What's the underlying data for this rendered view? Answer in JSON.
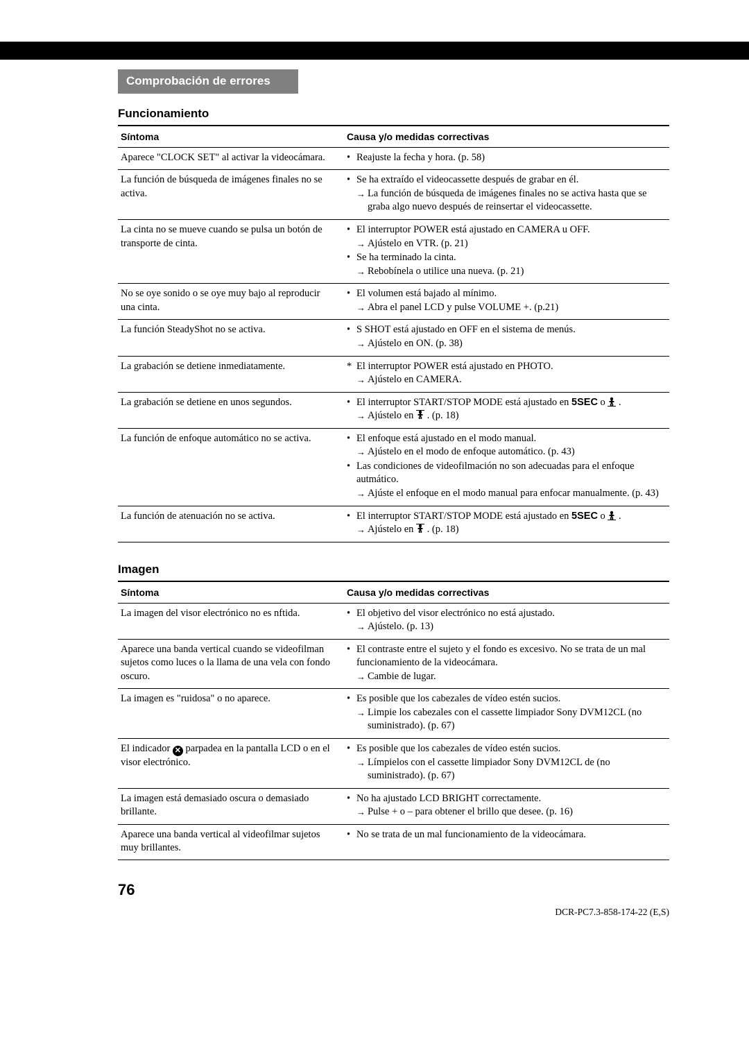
{
  "header": {
    "title": "Comprobación de errores"
  },
  "section1": {
    "title": "Funcionamiento",
    "col1": "Síntoma",
    "col2": "Causa y/o medidas correctivas",
    "rows": [
      {
        "symptom": "Aparece \"CLOCK SET\" al activar la videocámara.",
        "causes": [
          {
            "type": "bullet",
            "text": "Reajuste la fecha y hora. (p. 58)"
          }
        ]
      },
      {
        "symptom": "La función de búsqueda de imágenes finales no se activa.",
        "causes": [
          {
            "type": "bullet",
            "text": "Se ha extraído el videocassette después de grabar en él.",
            "arrows": [
              "La función de búsqueda de imágenes finales no se activa hasta que se graba algo nuevo después de reinsertar el videocassette."
            ]
          }
        ]
      },
      {
        "symptom": "La cinta no se mueve cuando se pulsa un botón de transporte de cinta.",
        "causes": [
          {
            "type": "bullet",
            "text": "El interruptor POWER está ajustado en CAMERA u OFF.",
            "arrows": [
              "Ajústelo en VTR. (p. 21)"
            ]
          },
          {
            "type": "bullet",
            "text": "Se ha terminado la cinta.",
            "arrows": [
              "Rebobínela o utilice una nueva. (p. 21)"
            ]
          }
        ]
      },
      {
        "symptom": "No se oye sonido o se oye muy bajo al reproducir una cinta.",
        "causes": [
          {
            "type": "bullet",
            "text": "El volumen está bajado al mínimo.",
            "arrows": [
              "Abra el panel LCD y pulse VOLUME +. (p.21)"
            ]
          }
        ]
      },
      {
        "symptom": "La función SteadyShot no se activa.",
        "causes": [
          {
            "type": "bullet",
            "text": "S SHOT está ajustado en OFF en el sistema de menús.",
            "arrows": [
              "Ajústelo en ON. (p. 38)"
            ]
          }
        ]
      },
      {
        "symptom": "La grabación se detiene inmediatamente.",
        "causes": [
          {
            "type": "ast",
            "text": "El interruptor POWER está ajustado en PHOTO.",
            "arrows": [
              "Ajústelo en CAMERA."
            ]
          }
        ]
      },
      {
        "symptom": "La grabación se detiene en unos segundos.",
        "causes": [
          {
            "type": "bullet",
            "html": "El interruptor START/STOP MODE está ajustado en <span class=\"bold-sans\">5SEC</span> o <span class=\"icon-person\"><svg width=\"12\" height=\"14\" viewBox=\"0 0 12 14\"><circle cx=\"6\" cy=\"3\" r=\"2.2\" fill=\"#000\"/><rect x=\"4.7\" y=\"5\" width=\"2.6\" height=\"5\" fill=\"#000\"/><rect x=\"2.5\" y=\"6\" width=\"7\" height=\"1.8\" fill=\"#000\"/><rect x=\"3.8\" y=\"9.8\" width=\"1.8\" height=\"3.2\" fill=\"#000\"/><rect x=\"6.4\" y=\"9.8\" width=\"1.8\" height=\"3.2\" fill=\"#000\"/><rect x=\"0\" y=\"13\" width=\"12\" height=\"1\" fill=\"#000\"/></svg></span> .",
            "arrows_html": [
              "Ajústelo en <span class=\"icon-person\"><svg width=\"12\" height=\"14\" viewBox=\"0 0 12 14\"><circle cx=\"6\" cy=\"3\" r=\"2.2\" fill=\"#000\"/><rect x=\"4.7\" y=\"5\" width=\"2.6\" height=\"5\" fill=\"#000\"/><rect x=\"2.5\" y=\"6\" width=\"7\" height=\"1.8\" fill=\"#000\"/><rect x=\"3.8\" y=\"9.8\" width=\"1.8\" height=\"3.2\" fill=\"#000\"/><rect x=\"6.4\" y=\"9.8\" width=\"1.8\" height=\"3.2\" fill=\"#000\"/><rect x=\"0\" y=\"0\" width=\"12\" height=\"1\" fill=\"#000\"/></svg></span> . (p. 18)"
            ]
          }
        ]
      },
      {
        "symptom": "La función de enfoque automático no se activa.",
        "causes": [
          {
            "type": "bullet",
            "text": "El enfoque está ajustado en el modo manual.",
            "arrows": [
              "Ajústelo en el modo de enfoque automático. (p. 43)"
            ]
          },
          {
            "type": "bullet",
            "text": "Las condiciones de videofilmación no son adecuadas para el enfoque autmático.",
            "arrows": [
              "Ajúste el enfoque en el modo manual para enfocar manualmente. (p. 43)"
            ]
          }
        ]
      },
      {
        "symptom": "La función de atenuación no se activa.",
        "causes": [
          {
            "type": "bullet",
            "html": "El interruptor START/STOP MODE está ajustado en <span class=\"bold-sans\">5SEC</span> o <span class=\"icon-person\"><svg width=\"12\" height=\"14\" viewBox=\"0 0 12 14\"><circle cx=\"6\" cy=\"3\" r=\"2.2\" fill=\"#000\"/><rect x=\"4.7\" y=\"5\" width=\"2.6\" height=\"5\" fill=\"#000\"/><rect x=\"2.5\" y=\"6\" width=\"7\" height=\"1.8\" fill=\"#000\"/><rect x=\"3.8\" y=\"9.8\" width=\"1.8\" height=\"3.2\" fill=\"#000\"/><rect x=\"6.4\" y=\"9.8\" width=\"1.8\" height=\"3.2\" fill=\"#000\"/><rect x=\"0\" y=\"13\" width=\"12\" height=\"1\" fill=\"#000\"/></svg></span> .",
            "arrows_html": [
              "Ajústelo en <span class=\"icon-person\"><svg width=\"12\" height=\"14\" viewBox=\"0 0 12 14\"><circle cx=\"6\" cy=\"3\" r=\"2.2\" fill=\"#000\"/><rect x=\"4.7\" y=\"5\" width=\"2.6\" height=\"5\" fill=\"#000\"/><rect x=\"2.5\" y=\"6\" width=\"7\" height=\"1.8\" fill=\"#000\"/><rect x=\"3.8\" y=\"9.8\" width=\"1.8\" height=\"3.2\" fill=\"#000\"/><rect x=\"6.4\" y=\"9.8\" width=\"1.8\" height=\"3.2\" fill=\"#000\"/><rect x=\"0\" y=\"0\" width=\"12\" height=\"1\" fill=\"#000\"/></svg></span> . (p. 18)"
            ]
          }
        ]
      }
    ]
  },
  "section2": {
    "title": "Imagen",
    "col1": "Síntoma",
    "col2": "Causa y/o medidas correctivas",
    "rows": [
      {
        "symptom": "La imagen del visor electrónico no es nftida.",
        "causes": [
          {
            "type": "bullet",
            "text": "El objetivo del visor electrónico no está ajustado.",
            "arrows": [
              "Ajústelo. (p. 13)"
            ]
          }
        ]
      },
      {
        "symptom": "Aparece una banda vertical cuando se videofilman sujetos como luces o la llama de una vela con fondo oscuro.",
        "causes": [
          {
            "type": "bullet",
            "text": "El contraste entre el sujeto y el fondo es excesivo. No se trata de un mal funcionamiento de la videocámara.",
            "arrows": [
              "Cambie de lugar."
            ]
          }
        ]
      },
      {
        "symptom": "La imagen es \"ruidosa\" o no aparece.",
        "causes": [
          {
            "type": "bullet",
            "text": "Es posible que los cabezales de vídeo estén sucios.",
            "arrows": [
              "Limpie los cabezales con el cassette limpiador Sony DVM12CL (no suministrado). (p. 67)"
            ]
          }
        ]
      },
      {
        "symptom_html": "El indicador <span class=\"icon-x\">✕</span> parpadea en la pantalla LCD o en el visor electrónico.",
        "causes": [
          {
            "type": "bullet",
            "text": "Es posible que los cabezales de vídeo estén sucios.",
            "arrows": [
              "Límpielos con el cassette limpiador Sony DVM12CL de (no suministrado). (p. 67)"
            ]
          }
        ]
      },
      {
        "symptom": "La imagen está demasiado oscura o demasiado brillante.",
        "causes": [
          {
            "type": "bullet",
            "text": "No ha ajustado LCD BRIGHT correctamente.",
            "arrows": [
              "Pulse + o – para obtener el brillo que desee. (p. 16)"
            ]
          }
        ]
      },
      {
        "symptom": "Aparece una banda vertical al videofilmar sujetos muy brillantes.",
        "causes": [
          {
            "type": "bullet",
            "text": "No se trata de un mal funcionamiento de la videocámara."
          }
        ]
      }
    ]
  },
  "page": {
    "number": "76",
    "code": "DCR-PC7.3-858-174-22 (E,S)"
  }
}
